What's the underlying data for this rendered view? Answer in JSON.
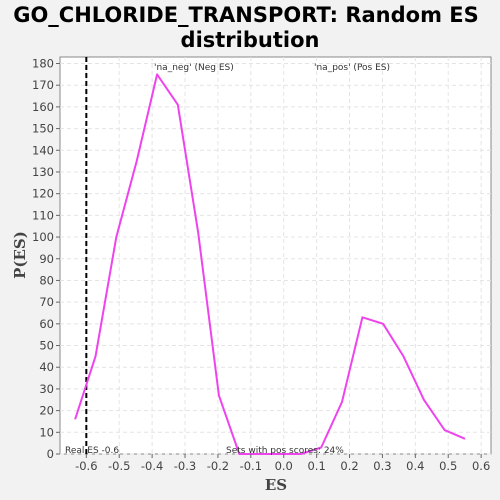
{
  "chart_data": {
    "type": "line",
    "title_line1": "GO_CHLORIDE_TRANSPORT: Random ES",
    "title_line2": "distribution",
    "xlabel": "ES",
    "ylabel": "P(ES)",
    "xlim": [
      -0.68,
      0.63
    ],
    "ylim": [
      0,
      183
    ],
    "xticks": [
      -0.6,
      -0.5,
      -0.4,
      -0.3,
      -0.2,
      -0.1,
      0.0,
      0.1,
      0.2,
      0.3,
      0.4,
      0.5,
      0.6
    ],
    "xtick_labels": [
      "-0.6",
      "-0.5",
      "-0.4",
      "-0.3",
      "-0.2",
      "-0.1",
      "0.0",
      "0.1",
      "0.2",
      "0.3",
      "0.4",
      "0.5",
      "0.6"
    ],
    "yticks": [
      0,
      10,
      20,
      30,
      40,
      50,
      60,
      70,
      80,
      90,
      100,
      110,
      120,
      130,
      140,
      150,
      160,
      170,
      180
    ],
    "ytick_labels": [
      "0",
      "10",
      "20",
      "30",
      "40",
      "50",
      "60",
      "70",
      "80",
      "90",
      "100",
      "110",
      "120",
      "130",
      "140",
      "150",
      "160",
      "170",
      "180"
    ],
    "grid": true,
    "series": [
      {
        "color": "#ee44ee",
        "x": [
          -0.634,
          -0.572,
          -0.509,
          -0.447,
          -0.385,
          -0.322,
          -0.26,
          -0.197,
          -0.135,
          -0.073,
          -0.01,
          0.052,
          0.114,
          0.177,
          0.239,
          0.302,
          0.364,
          0.426,
          0.489,
          0.551
        ],
        "y": [
          16,
          45,
          100,
          135,
          175,
          161,
          102,
          27,
          0,
          0,
          0,
          0,
          3,
          24,
          63,
          60,
          45,
          25,
          11,
          7
        ]
      }
    ],
    "reference_line": {
      "x": -0.6,
      "label": "Real ES -0.6"
    },
    "legend": {
      "neg_label": "'na_neg' (Neg ES)",
      "neg_color": "#3333cc",
      "pos_label": "'na_pos' (Pos ES)",
      "pos_color": "#dd2222"
    },
    "footer_note": "Sets with pos scores: 24%"
  }
}
